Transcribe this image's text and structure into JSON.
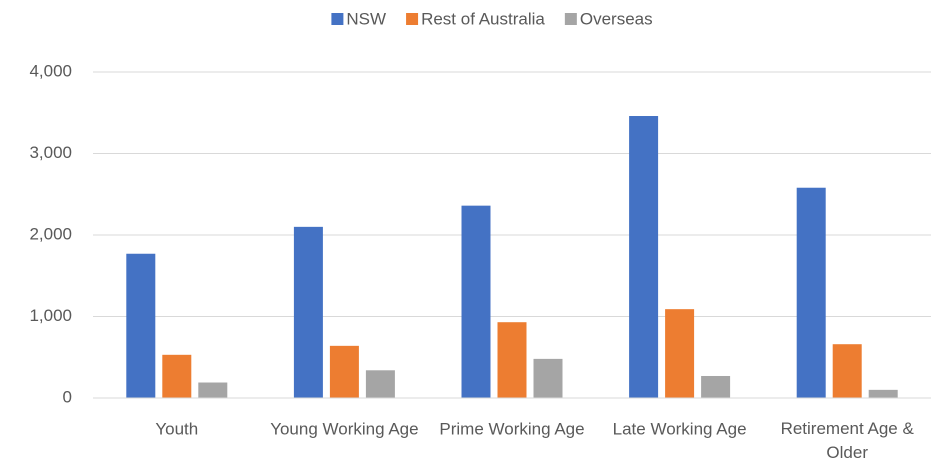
{
  "chart_data": {
    "type": "bar",
    "categories": [
      "Youth",
      "Young Working Age",
      "Prime Working Age",
      "Late Working Age",
      "Retirement Age & Older"
    ],
    "series": [
      {
        "name": "NSW",
        "color": "#4472c4",
        "values": [
          1770,
          2100,
          2360,
          3460,
          2580
        ]
      },
      {
        "name": "Rest of Australia",
        "color": "#ed7d31",
        "values": [
          530,
          640,
          930,
          1090,
          660
        ]
      },
      {
        "name": "Overseas",
        "color": "#a5a5a5",
        "values": [
          190,
          340,
          480,
          270,
          100
        ]
      }
    ],
    "ylim": [
      0,
      4000
    ],
    "yticks": [
      0,
      {
        "value": 1000,
        "label": "1,000"
      },
      {
        "value": 2000,
        "label": "2,000"
      },
      {
        "value": 3000,
        "label": "3,000"
      },
      {
        "value": 4000,
        "label": "4,000"
      }
    ],
    "grid": true,
    "legend": "top"
  }
}
